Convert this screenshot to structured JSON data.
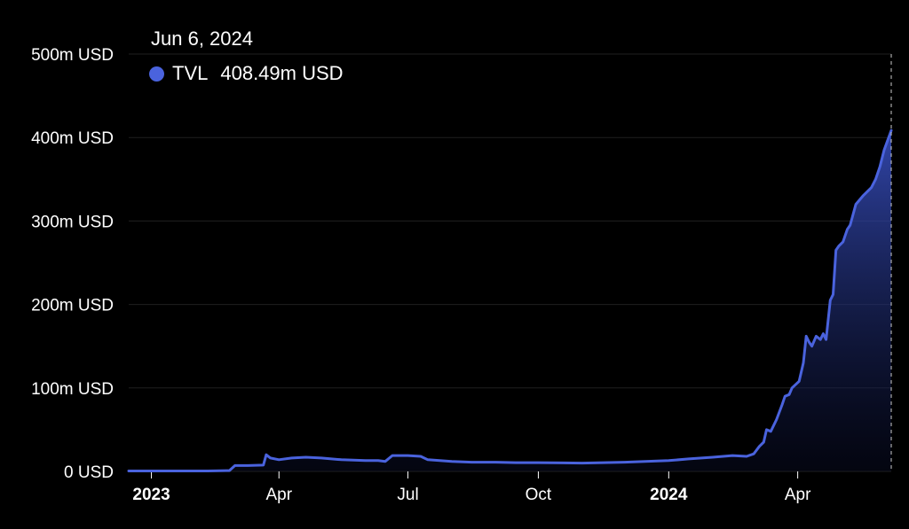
{
  "colors": {
    "background": "#000000",
    "line": "#4a63de",
    "text": "#ffffff",
    "grid": "#1f1f1f",
    "crosshair": "#cccccc"
  },
  "tooltip": {
    "date": "Jun 6, 2024",
    "series_name": "TVL",
    "value_text": "408.49m USD",
    "marker_icon": "circle-dot-icon"
  },
  "chart_data": {
    "type": "area",
    "title": "",
    "xlabel": "",
    "ylabel": "",
    "y_unit": "m USD",
    "ylim": [
      0,
      500
    ],
    "xlim": [
      "2022-12-16",
      "2024-06-06"
    ],
    "grid": "horizontal",
    "legend": "none",
    "y_ticks": [
      {
        "value": 0,
        "label": "0 USD"
      },
      {
        "value": 100,
        "label": "100m USD"
      },
      {
        "value": 200,
        "label": "200m USD"
      },
      {
        "value": 300,
        "label": "300m USD"
      },
      {
        "value": 400,
        "label": "400m USD"
      },
      {
        "value": 500,
        "label": "500m USD"
      }
    ],
    "x_ticks": [
      {
        "date": "2023-01-01",
        "label": "2023",
        "bold": true
      },
      {
        "date": "2023-04-01",
        "label": "Apr",
        "bold": false
      },
      {
        "date": "2023-07-01",
        "label": "Jul",
        "bold": false
      },
      {
        "date": "2023-10-01",
        "label": "Oct",
        "bold": false
      },
      {
        "date": "2024-01-01",
        "label": "2024",
        "bold": true
      },
      {
        "date": "2024-04-01",
        "label": "Apr",
        "bold": false
      }
    ],
    "series": [
      {
        "name": "TVL",
        "points": [
          [
            "2022-12-16",
            0.5
          ],
          [
            "2023-01-15",
            0.5
          ],
          [
            "2023-02-10",
            0.5
          ],
          [
            "2023-02-25",
            1
          ],
          [
            "2023-03-01",
            7
          ],
          [
            "2023-03-10",
            7
          ],
          [
            "2023-03-21",
            7.5
          ],
          [
            "2023-03-23",
            20
          ],
          [
            "2023-03-26",
            16
          ],
          [
            "2023-04-01",
            14
          ],
          [
            "2023-04-10",
            16
          ],
          [
            "2023-04-20",
            17
          ],
          [
            "2023-05-01",
            16
          ],
          [
            "2023-05-15",
            14
          ],
          [
            "2023-06-01",
            13
          ],
          [
            "2023-06-10",
            13
          ],
          [
            "2023-06-15",
            12
          ],
          [
            "2023-06-20",
            19
          ],
          [
            "2023-07-01",
            19
          ],
          [
            "2023-07-10",
            18
          ],
          [
            "2023-07-15",
            14
          ],
          [
            "2023-08-01",
            12
          ],
          [
            "2023-08-15",
            11
          ],
          [
            "2023-09-01",
            11
          ],
          [
            "2023-09-15",
            10.5
          ],
          [
            "2023-10-01",
            10.5
          ],
          [
            "2023-11-01",
            10
          ],
          [
            "2023-12-01",
            11
          ],
          [
            "2024-01-01",
            13
          ],
          [
            "2024-01-15",
            15
          ],
          [
            "2024-02-01",
            17
          ],
          [
            "2024-02-15",
            19
          ],
          [
            "2024-02-25",
            18
          ],
          [
            "2024-03-01",
            21
          ],
          [
            "2024-03-05",
            30
          ],
          [
            "2024-03-08",
            35
          ],
          [
            "2024-03-10",
            50
          ],
          [
            "2024-03-13",
            48
          ],
          [
            "2024-03-17",
            62
          ],
          [
            "2024-03-21",
            80
          ],
          [
            "2024-03-23",
            90
          ],
          [
            "2024-03-26",
            92
          ],
          [
            "2024-03-28",
            100
          ],
          [
            "2024-04-02",
            108
          ],
          [
            "2024-04-05",
            130
          ],
          [
            "2024-04-07",
            162
          ],
          [
            "2024-04-09",
            155
          ],
          [
            "2024-04-11",
            150
          ],
          [
            "2024-04-14",
            162
          ],
          [
            "2024-04-17",
            158
          ],
          [
            "2024-04-19",
            165
          ],
          [
            "2024-04-21",
            158
          ],
          [
            "2024-04-24",
            205
          ],
          [
            "2024-04-26",
            212
          ],
          [
            "2024-04-28",
            265
          ],
          [
            "2024-04-30",
            270
          ],
          [
            "2024-05-03",
            275
          ],
          [
            "2024-05-06",
            290
          ],
          [
            "2024-05-08",
            295
          ],
          [
            "2024-05-12",
            320
          ],
          [
            "2024-05-17",
            330
          ],
          [
            "2024-05-23",
            340
          ],
          [
            "2024-05-26",
            350
          ],
          [
            "2024-05-29",
            365
          ],
          [
            "2024-06-01",
            385
          ],
          [
            "2024-06-06",
            408.49
          ]
        ]
      }
    ]
  }
}
